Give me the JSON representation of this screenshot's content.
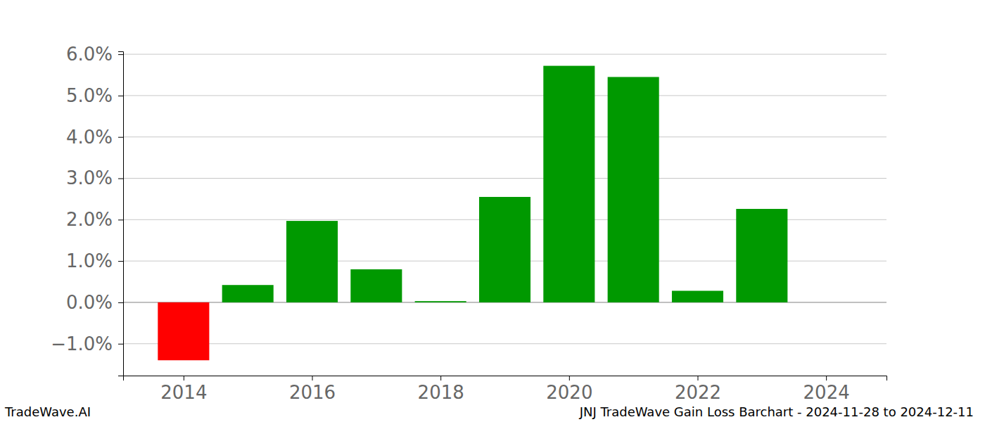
{
  "chart_data": {
    "type": "bar",
    "x": [
      2014,
      2015,
      2016,
      2017,
      2018,
      2019,
      2020,
      2021,
      2022,
      2023,
      2024
    ],
    "values": [
      -1.4,
      0.42,
      1.97,
      0.8,
      0.03,
      2.55,
      5.72,
      5.45,
      0.28,
      2.26,
      0
    ],
    "colors": [
      "#ff0000",
      "#009900",
      "#009900",
      "#009900",
      "#009900",
      "#009900",
      "#009900",
      "#009900",
      "#009900",
      "#009900",
      "#009900"
    ],
    "xlim": [
      2013.06,
      2024.94
    ],
    "xticks": [
      2014,
      2016,
      2018,
      2020,
      2022,
      2024
    ],
    "ylim": [
      -1.77,
      6.07
    ],
    "yticks": [
      {
        "value": -1,
        "label": "−1.0%"
      },
      {
        "value": 0,
        "label": "0.0%"
      },
      {
        "value": 1,
        "label": "1.0%"
      },
      {
        "value": 2,
        "label": "2.0%"
      },
      {
        "value": 3,
        "label": "3.0%"
      },
      {
        "value": 4,
        "label": "4.0%"
      },
      {
        "value": 5,
        "label": "5.0%"
      },
      {
        "value": 6,
        "label": "6.0%"
      }
    ],
    "grid": true,
    "annotations": [
      "TradeWave.AI",
      "JNJ TradeWave Gain Loss Barchart - 2024-11-28 to 2024-12-11"
    ]
  }
}
